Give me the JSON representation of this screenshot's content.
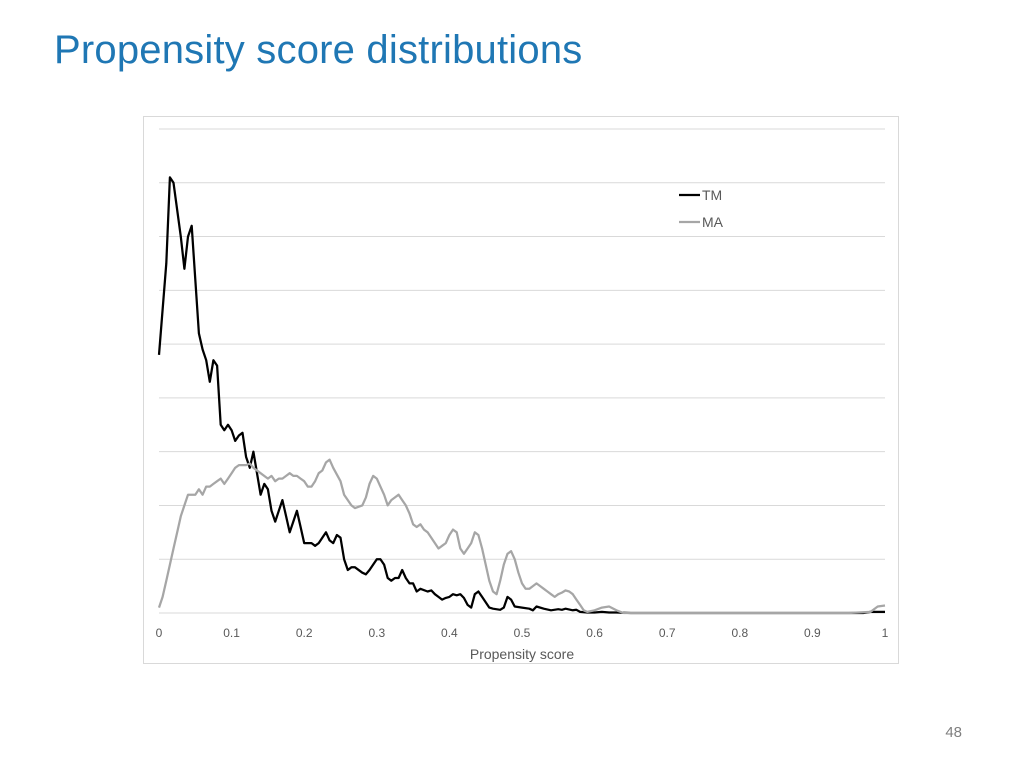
{
  "slide": {
    "title": "Propensity score distributions",
    "page_number": "48"
  },
  "chart_data": {
    "type": "line",
    "title": "",
    "xlabel": "Propensity score",
    "ylabel": "",
    "xlim": [
      0,
      1
    ],
    "ylim": [
      0,
      9
    ],
    "x_ticks": [
      "0",
      "0.1",
      "0.2",
      "0.3",
      "0.4",
      "0.5",
      "0.6",
      "0.7",
      "0.8",
      "0.9",
      "1"
    ],
    "grid": true,
    "legend_position": "top-right",
    "series": [
      {
        "name": "TM",
        "color": "#000000",
        "points": [
          [
            0,
            4.8
          ],
          [
            0.01,
            6.5
          ],
          [
            0.015,
            8.1
          ],
          [
            0.02,
            8.0
          ],
          [
            0.03,
            7.0
          ],
          [
            0.035,
            6.4
          ],
          [
            0.04,
            7.0
          ],
          [
            0.045,
            7.2
          ],
          [
            0.05,
            6.2
          ],
          [
            0.055,
            5.2
          ],
          [
            0.06,
            4.9
          ],
          [
            0.065,
            4.7
          ],
          [
            0.07,
            4.3
          ],
          [
            0.075,
            4.7
          ],
          [
            0.08,
            4.6
          ],
          [
            0.085,
            3.5
          ],
          [
            0.09,
            3.4
          ],
          [
            0.095,
            3.5
          ],
          [
            0.1,
            3.4
          ],
          [
            0.105,
            3.2
          ],
          [
            0.11,
            3.3
          ],
          [
            0.115,
            3.35
          ],
          [
            0.12,
            2.9
          ],
          [
            0.125,
            2.7
          ],
          [
            0.13,
            3.0
          ],
          [
            0.135,
            2.6
          ],
          [
            0.14,
            2.2
          ],
          [
            0.145,
            2.4
          ],
          [
            0.15,
            2.3
          ],
          [
            0.155,
            1.9
          ],
          [
            0.16,
            1.7
          ],
          [
            0.165,
            1.9
          ],
          [
            0.17,
            2.1
          ],
          [
            0.175,
            1.8
          ],
          [
            0.18,
            1.5
          ],
          [
            0.185,
            1.7
          ],
          [
            0.19,
            1.9
          ],
          [
            0.195,
            1.6
          ],
          [
            0.2,
            1.3
          ],
          [
            0.21,
            1.3
          ],
          [
            0.215,
            1.25
          ],
          [
            0.22,
            1.3
          ],
          [
            0.225,
            1.4
          ],
          [
            0.23,
            1.5
          ],
          [
            0.235,
            1.35
          ],
          [
            0.24,
            1.3
          ],
          [
            0.245,
            1.45
          ],
          [
            0.25,
            1.4
          ],
          [
            0.255,
            1.0
          ],
          [
            0.26,
            0.8
          ],
          [
            0.265,
            0.85
          ],
          [
            0.27,
            0.85
          ],
          [
            0.28,
            0.75
          ],
          [
            0.285,
            0.72
          ],
          [
            0.29,
            0.8
          ],
          [
            0.3,
            1.0
          ],
          [
            0.305,
            1.0
          ],
          [
            0.31,
            0.9
          ],
          [
            0.315,
            0.65
          ],
          [
            0.32,
            0.6
          ],
          [
            0.325,
            0.65
          ],
          [
            0.33,
            0.65
          ],
          [
            0.335,
            0.8
          ],
          [
            0.34,
            0.65
          ],
          [
            0.345,
            0.55
          ],
          [
            0.35,
            0.55
          ],
          [
            0.355,
            0.4
          ],
          [
            0.36,
            0.45
          ],
          [
            0.37,
            0.4
          ],
          [
            0.375,
            0.42
          ],
          [
            0.38,
            0.35
          ],
          [
            0.385,
            0.3
          ],
          [
            0.39,
            0.25
          ],
          [
            0.395,
            0.28
          ],
          [
            0.4,
            0.3
          ],
          [
            0.405,
            0.35
          ],
          [
            0.41,
            0.33
          ],
          [
            0.415,
            0.35
          ],
          [
            0.42,
            0.28
          ],
          [
            0.425,
            0.15
          ],
          [
            0.43,
            0.1
          ],
          [
            0.435,
            0.35
          ],
          [
            0.44,
            0.4
          ],
          [
            0.445,
            0.3
          ],
          [
            0.45,
            0.2
          ],
          [
            0.455,
            0.1
          ],
          [
            0.46,
            0.08
          ],
          [
            0.47,
            0.06
          ],
          [
            0.475,
            0.1
          ],
          [
            0.48,
            0.3
          ],
          [
            0.485,
            0.25
          ],
          [
            0.49,
            0.12
          ],
          [
            0.5,
            0.1
          ],
          [
            0.51,
            0.08
          ],
          [
            0.515,
            0.05
          ],
          [
            0.52,
            0.12
          ],
          [
            0.53,
            0.08
          ],
          [
            0.54,
            0.05
          ],
          [
            0.55,
            0.07
          ],
          [
            0.555,
            0.06
          ],
          [
            0.56,
            0.08
          ],
          [
            0.57,
            0.05
          ],
          [
            0.575,
            0.06
          ],
          [
            0.58,
            0.02
          ],
          [
            0.59,
            0.01
          ],
          [
            0.6,
            0.01
          ],
          [
            0.61,
            0.02
          ],
          [
            0.62,
            0.01
          ],
          [
            0.63,
            0.01
          ],
          [
            0.65,
            0.0
          ],
          [
            0.7,
            0.0
          ],
          [
            0.8,
            0.0
          ],
          [
            0.9,
            0.0
          ],
          [
            0.97,
            0.0
          ],
          [
            0.98,
            0.02
          ],
          [
            1.0,
            0.02
          ]
        ]
      },
      {
        "name": "MA",
        "color": "#a6a6a6",
        "points": [
          [
            0,
            0.1
          ],
          [
            0.005,
            0.3
          ],
          [
            0.01,
            0.6
          ],
          [
            0.015,
            0.9
          ],
          [
            0.02,
            1.2
          ],
          [
            0.025,
            1.5
          ],
          [
            0.03,
            1.8
          ],
          [
            0.035,
            2.0
          ],
          [
            0.04,
            2.2
          ],
          [
            0.045,
            2.2
          ],
          [
            0.05,
            2.2
          ],
          [
            0.055,
            2.3
          ],
          [
            0.06,
            2.2
          ],
          [
            0.065,
            2.35
          ],
          [
            0.07,
            2.35
          ],
          [
            0.075,
            2.4
          ],
          [
            0.08,
            2.45
          ],
          [
            0.085,
            2.5
          ],
          [
            0.09,
            2.4
          ],
          [
            0.095,
            2.5
          ],
          [
            0.1,
            2.6
          ],
          [
            0.105,
            2.7
          ],
          [
            0.11,
            2.75
          ],
          [
            0.12,
            2.75
          ],
          [
            0.125,
            2.78
          ],
          [
            0.13,
            2.7
          ],
          [
            0.14,
            2.6
          ],
          [
            0.15,
            2.5
          ],
          [
            0.155,
            2.55
          ],
          [
            0.16,
            2.45
          ],
          [
            0.165,
            2.5
          ],
          [
            0.17,
            2.5
          ],
          [
            0.175,
            2.55
          ],
          [
            0.18,
            2.6
          ],
          [
            0.185,
            2.55
          ],
          [
            0.19,
            2.55
          ],
          [
            0.195,
            2.5
          ],
          [
            0.2,
            2.45
          ],
          [
            0.205,
            2.35
          ],
          [
            0.21,
            2.35
          ],
          [
            0.215,
            2.45
          ],
          [
            0.22,
            2.6
          ],
          [
            0.225,
            2.65
          ],
          [
            0.23,
            2.8
          ],
          [
            0.235,
            2.85
          ],
          [
            0.24,
            2.7
          ],
          [
            0.25,
            2.45
          ],
          [
            0.255,
            2.2
          ],
          [
            0.26,
            2.1
          ],
          [
            0.265,
            2.0
          ],
          [
            0.27,
            1.95
          ],
          [
            0.28,
            2.0
          ],
          [
            0.285,
            2.15
          ],
          [
            0.29,
            2.4
          ],
          [
            0.295,
            2.55
          ],
          [
            0.3,
            2.5
          ],
          [
            0.305,
            2.35
          ],
          [
            0.31,
            2.2
          ],
          [
            0.315,
            2.0
          ],
          [
            0.32,
            2.1
          ],
          [
            0.325,
            2.15
          ],
          [
            0.33,
            2.2
          ],
          [
            0.335,
            2.1
          ],
          [
            0.34,
            2.0
          ],
          [
            0.345,
            1.85
          ],
          [
            0.35,
            1.65
          ],
          [
            0.355,
            1.6
          ],
          [
            0.36,
            1.65
          ],
          [
            0.365,
            1.55
          ],
          [
            0.37,
            1.5
          ],
          [
            0.375,
            1.4
          ],
          [
            0.38,
            1.3
          ],
          [
            0.385,
            1.2
          ],
          [
            0.39,
            1.25
          ],
          [
            0.395,
            1.3
          ],
          [
            0.4,
            1.45
          ],
          [
            0.405,
            1.55
          ],
          [
            0.41,
            1.5
          ],
          [
            0.415,
            1.2
          ],
          [
            0.42,
            1.1
          ],
          [
            0.425,
            1.2
          ],
          [
            0.43,
            1.3
          ],
          [
            0.435,
            1.5
          ],
          [
            0.44,
            1.45
          ],
          [
            0.445,
            1.2
          ],
          [
            0.45,
            0.9
          ],
          [
            0.455,
            0.6
          ],
          [
            0.46,
            0.4
          ],
          [
            0.465,
            0.35
          ],
          [
            0.47,
            0.6
          ],
          [
            0.475,
            0.9
          ],
          [
            0.48,
            1.1
          ],
          [
            0.485,
            1.15
          ],
          [
            0.49,
            1.0
          ],
          [
            0.495,
            0.75
          ],
          [
            0.5,
            0.55
          ],
          [
            0.505,
            0.45
          ],
          [
            0.51,
            0.45
          ],
          [
            0.515,
            0.5
          ],
          [
            0.52,
            0.55
          ],
          [
            0.525,
            0.5
          ],
          [
            0.53,
            0.45
          ],
          [
            0.535,
            0.4
          ],
          [
            0.54,
            0.35
          ],
          [
            0.545,
            0.3
          ],
          [
            0.55,
            0.35
          ],
          [
            0.555,
            0.38
          ],
          [
            0.56,
            0.42
          ],
          [
            0.565,
            0.4
          ],
          [
            0.57,
            0.35
          ],
          [
            0.575,
            0.25
          ],
          [
            0.58,
            0.15
          ],
          [
            0.585,
            0.05
          ],
          [
            0.59,
            0.02
          ],
          [
            0.6,
            0.05
          ],
          [
            0.61,
            0.1
          ],
          [
            0.62,
            0.12
          ],
          [
            0.63,
            0.05
          ],
          [
            0.64,
            0.0
          ],
          [
            0.7,
            0.0
          ],
          [
            0.8,
            0.0
          ],
          [
            0.9,
            0.0
          ],
          [
            0.95,
            0.0
          ],
          [
            0.98,
            0.02
          ],
          [
            0.99,
            0.12
          ],
          [
            1.0,
            0.14
          ]
        ]
      }
    ]
  }
}
